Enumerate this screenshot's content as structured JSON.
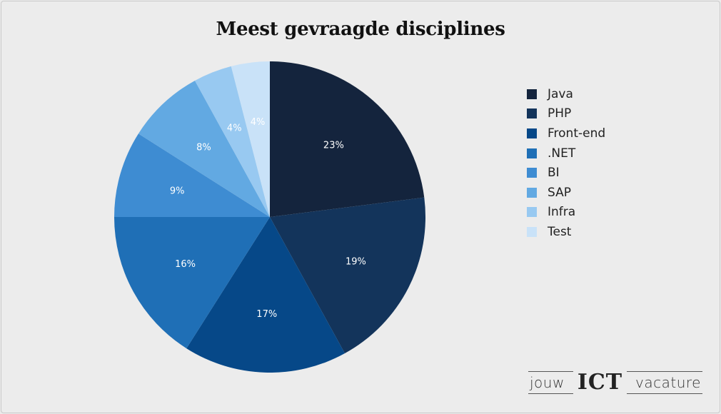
{
  "chart_data": {
    "type": "pie",
    "title": "Meest gevraagde disciplines",
    "slices": [
      {
        "label": "Java",
        "value": 23,
        "display": "23%",
        "color": "#14243d",
        "text_color": "#ffffff"
      },
      {
        "label": "PHP",
        "value": 19,
        "display": "19%",
        "color": "#13345b",
        "text_color": "#ffffff"
      },
      {
        "label": "Front-end",
        "value": 17,
        "display": "17%",
        "color": "#064888",
        "text_color": "#ffffff"
      },
      {
        "label": ".NET",
        "value": 16,
        "display": "16%",
        "color": "#1f6fb6",
        "text_color": "#ffffff"
      },
      {
        "label": "BI",
        "value": 9,
        "display": "9%",
        "color": "#3e8cd2",
        "text_color": "#ffffff"
      },
      {
        "label": "SAP",
        "value": 8,
        "display": "8%",
        "color": "#62a9e2",
        "text_color": "#ffffff"
      },
      {
        "label": "Infra",
        "value": 4,
        "display": "4%",
        "color": "#98c9f1",
        "text_color": "#ffffff"
      },
      {
        "label": "Test",
        "value": 4,
        "display": "4%",
        "color": "#c9e2f8",
        "text_color": "#ffffff"
      }
    ],
    "legend_position": "right",
    "start": "top, clockwise"
  },
  "logo": {
    "left": "jouw",
    "middle": "ICT",
    "right": "vacature"
  }
}
